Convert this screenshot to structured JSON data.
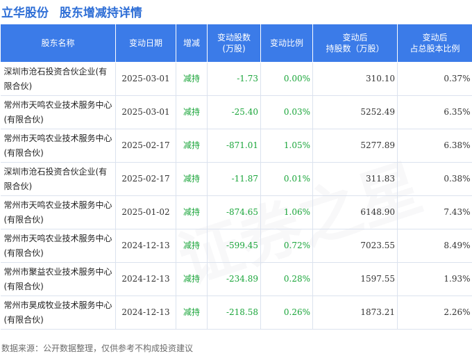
{
  "header": {
    "stock_name": "立华股份",
    "page_title": "股东增减持详情"
  },
  "columns": [
    "股东名称",
    "变动日期",
    "增减",
    "变动股数\n(万股)",
    "变动比例",
    "变动后\n持股数（万股）",
    "变动后\n占总股本比例"
  ],
  "rows": [
    {
      "name": "深圳市沧石投资合伙企业(有限合伙)",
      "date": "2025-03-01",
      "direction": "减持",
      "change": "-1.73",
      "ratio": "0.00%",
      "after_shares": "310.10",
      "after_ratio": "0.37%"
    },
    {
      "name": "常州市天鸣农业技术服务中心(有限合伙)",
      "date": "2025-03-01",
      "direction": "减持",
      "change": "-25.40",
      "ratio": "0.03%",
      "after_shares": "5252.49",
      "after_ratio": "6.35%"
    },
    {
      "name": "常州市天鸣农业技术服务中心(有限合伙)",
      "date": "2025-02-17",
      "direction": "减持",
      "change": "-871.01",
      "ratio": "1.05%",
      "after_shares": "5277.89",
      "after_ratio": "6.38%"
    },
    {
      "name": "深圳市沧石投资合伙企业(有限合伙)",
      "date": "2025-02-17",
      "direction": "减持",
      "change": "-11.87",
      "ratio": "0.01%",
      "after_shares": "311.83",
      "after_ratio": "0.38%"
    },
    {
      "name": "常州市天鸣农业技术服务中心(有限合伙)",
      "date": "2025-01-02",
      "direction": "减持",
      "change": "-874.65",
      "ratio": "1.06%",
      "after_shares": "6148.90",
      "after_ratio": "7.43%"
    },
    {
      "name": "常州市天鸣农业技术服务中心(有限合伙)",
      "date": "2024-12-13",
      "direction": "减持",
      "change": "-599.45",
      "ratio": "0.72%",
      "after_shares": "7023.55",
      "after_ratio": "8.49%"
    },
    {
      "name": "常州市聚益农业技术服务中心(有限合伙)",
      "date": "2024-12-13",
      "direction": "减持",
      "change": "-234.89",
      "ratio": "0.28%",
      "after_shares": "1597.55",
      "after_ratio": "1.93%"
    },
    {
      "name": "常州市昊成牧业技术服务中心(有限合伙)",
      "date": "2024-12-13",
      "direction": "减持",
      "change": "-218.58",
      "ratio": "0.26%",
      "after_shares": "1873.21",
      "after_ratio": "2.26%"
    }
  ],
  "footer": {
    "source": "数据来源：公开数据整理，仅供参考不构成投资建议"
  },
  "colors": {
    "header_bg": "#3b7be8",
    "title_blue": "#2e6ed6",
    "decrease_green": "#1aa53a",
    "watermark": "证券之星"
  }
}
